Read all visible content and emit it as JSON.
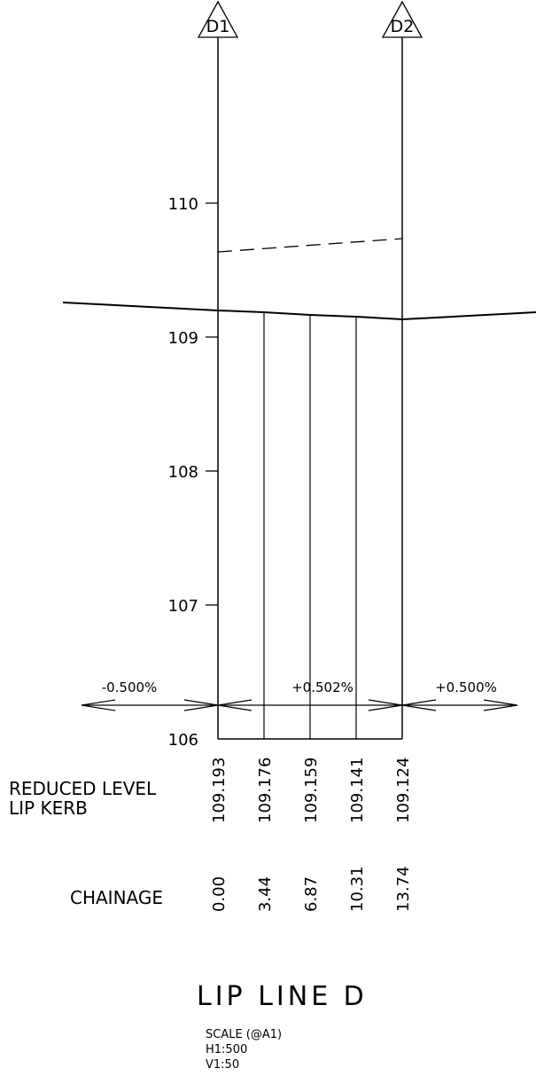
{
  "markers": [
    {
      "label": "D1"
    },
    {
      "label": "D2"
    }
  ],
  "vertical_axis": {
    "ticks": [
      "110",
      "109",
      "108",
      "107",
      "106"
    ]
  },
  "grades": {
    "left": "-0.500%",
    "middle": "+0.502%",
    "right": "+0.500%"
  },
  "table": {
    "reduced_level_label_line1": "REDUCED LEVEL",
    "reduced_level_label_line2": "LIP KERB",
    "reduced_levels": [
      "109.193",
      "109.176",
      "109.159",
      "109.141",
      "109.124"
    ],
    "chainage_label": "CHAINAGE",
    "chainages": [
      "0.00",
      "3.44",
      "6.87",
      "10.31",
      "13.74"
    ]
  },
  "title": "LIP LINE D",
  "scale": {
    "line1": "SCALE (@A1)",
    "line2": "H1:500",
    "line3": "V1:50"
  }
}
